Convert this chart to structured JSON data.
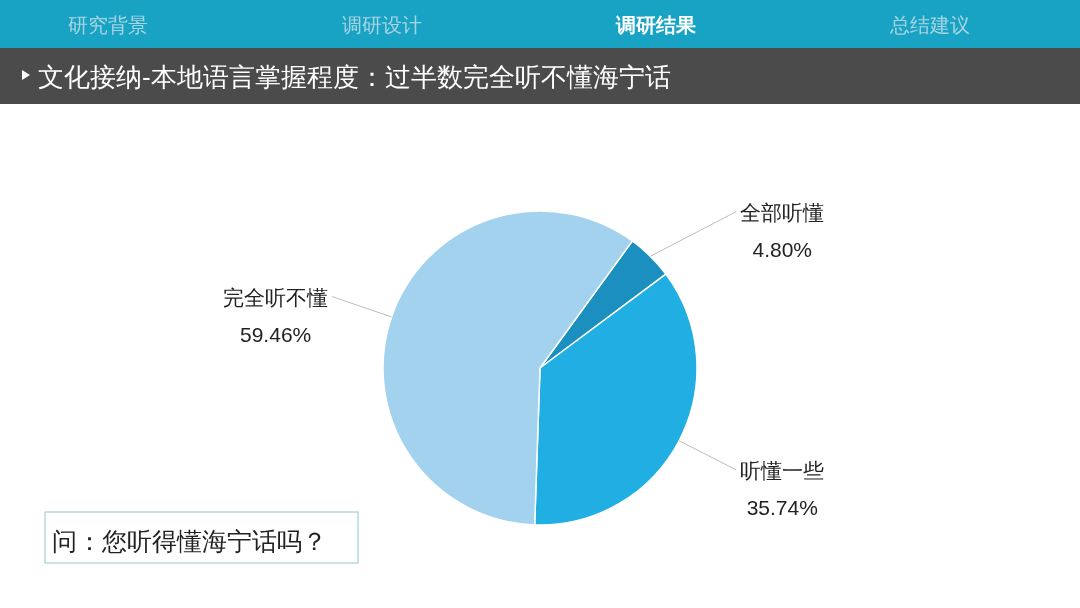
{
  "chart_data": {
    "type": "pie",
    "title": "文化接纳-本地语言掌握程度：过半数完全听不懂海宁话",
    "categories": [
      "全部听懂",
      "听懂一些",
      "完全听不懂"
    ],
    "values": [
      4.8,
      35.74,
      59.46
    ],
    "colors": [
      "#1a8fc0",
      "#20aee3",
      "#a2d2ee"
    ],
    "value_labels": [
      "4.80%",
      "35.74%",
      "59.46%"
    ],
    "annotations": [
      "研究背景",
      "调研设计",
      "调研结果",
      "总结建议",
      "问：您听得懂海宁话吗？"
    ]
  }
}
